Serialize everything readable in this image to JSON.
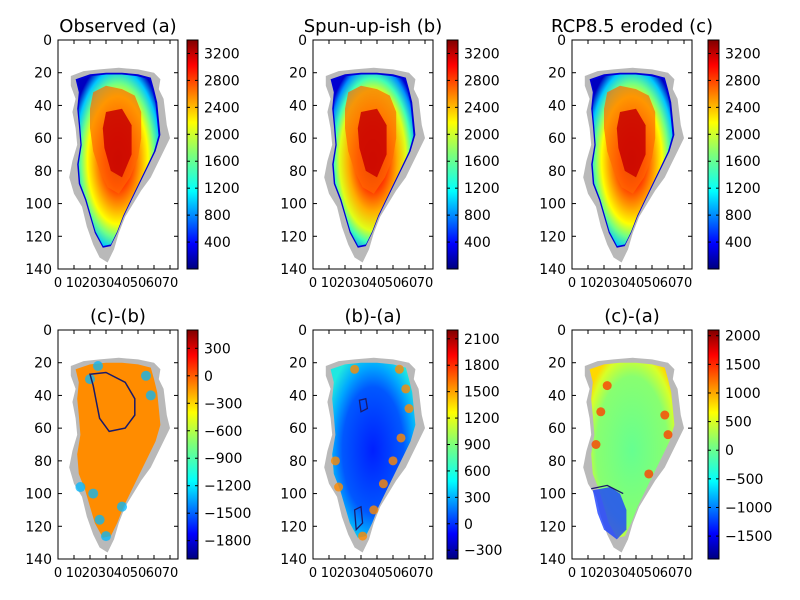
{
  "figure": {
    "panels": [
      {
        "id": "a",
        "title": "Observed (a)",
        "kind": "thickness",
        "cbar_ticks": [
          "3200",
          "2800",
          "2400",
          "2000",
          "1600",
          "1200",
          "800",
          "400"
        ]
      },
      {
        "id": "b",
        "title": "Spun-up-ish (b)",
        "kind": "thickness",
        "cbar_ticks": [
          "3200",
          "2800",
          "2400",
          "2000",
          "1600",
          "1200",
          "800",
          "400"
        ]
      },
      {
        "id": "c",
        "title": "RCP8.5 eroded (c)",
        "kind": "thickness",
        "cbar_ticks": [
          "3200",
          "2800",
          "2400",
          "2000",
          "1600",
          "1200",
          "800",
          "400"
        ]
      },
      {
        "id": "cb",
        "title": "(c)-(b)",
        "kind": "difference",
        "cbar_ticks": [
          "300",
          "0",
          "−300",
          "−600",
          "−900",
          "−1200",
          "−1500",
          "−1800"
        ]
      },
      {
        "id": "ba",
        "title": "(b)-(a)",
        "kind": "difference",
        "cbar_ticks": [
          "2100",
          "1800",
          "1500",
          "1200",
          "900",
          "600",
          "300",
          "0",
          "−300"
        ]
      },
      {
        "id": "ca",
        "title": "(c)-(a)",
        "kind": "difference",
        "cbar_ticks": [
          "2000",
          "1500",
          "1000",
          "500",
          "0",
          "−500",
          "−1000",
          "−1500"
        ]
      }
    ],
    "x_ticks": [
      "0",
      "10",
      "20",
      "30",
      "40",
      "50",
      "60",
      "70"
    ],
    "y_ticks": [
      "0",
      "20",
      "40",
      "60",
      "80",
      "100",
      "120",
      "140"
    ]
  },
  "chart_data": [
    {
      "type": "heatmap",
      "title": "Observed (a)",
      "xlim": [
        0,
        75
      ],
      "ylim": [
        140,
        0
      ],
      "colorbar_range": [
        0,
        3400
      ],
      "colormap": "jet",
      "grid": false
    },
    {
      "type": "heatmap",
      "title": "Spun-up-ish (b)",
      "xlim": [
        0,
        75
      ],
      "ylim": [
        140,
        0
      ],
      "colorbar_range": [
        0,
        3400
      ],
      "colormap": "jet",
      "grid": false
    },
    {
      "type": "heatmap",
      "title": "RCP8.5 eroded (c)",
      "xlim": [
        0,
        75
      ],
      "ylim": [
        140,
        0
      ],
      "colorbar_range": [
        0,
        3400
      ],
      "colormap": "jet",
      "grid": false
    },
    {
      "type": "heatmap",
      "title": "(c)-(b)",
      "xlim": [
        0,
        75
      ],
      "ylim": [
        140,
        0
      ],
      "colorbar_range": [
        -2000,
        500
      ],
      "colormap": "jet",
      "grid": false
    },
    {
      "type": "heatmap",
      "title": "(b)-(a)",
      "xlim": [
        0,
        75
      ],
      "ylim": [
        140,
        0
      ],
      "colorbar_range": [
        -400,
        2200
      ],
      "colormap": "jet",
      "grid": false
    },
    {
      "type": "heatmap",
      "title": "(c)-(a)",
      "xlim": [
        0,
        75
      ],
      "ylim": [
        140,
        0
      ],
      "colorbar_range": [
        -1900,
        2100
      ],
      "colormap": "jet",
      "grid": false
    }
  ]
}
